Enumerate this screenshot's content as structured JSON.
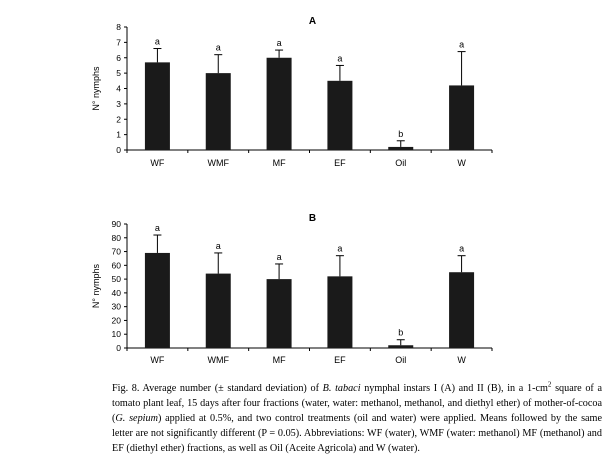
{
  "chart_data": [
    {
      "type": "bar",
      "title": "A",
      "ylabel": "N° nymphs",
      "xlabel": "",
      "categories": [
        "WF",
        "WMF",
        "MF",
        "EF",
        "Oil",
        "W"
      ],
      "values": [
        5.7,
        5.0,
        6.0,
        4.5,
        0.2,
        4.2
      ],
      "error": [
        0.9,
        1.2,
        0.5,
        1.0,
        0.4,
        2.2
      ],
      "letters": [
        "a",
        "a",
        "a",
        "a",
        "b",
        "a"
      ],
      "ylim": [
        0,
        8
      ],
      "yticks": [
        0,
        1,
        2,
        3,
        4,
        5,
        6,
        7,
        8
      ],
      "grid": false,
      "bar_color": "#1a1a1a"
    },
    {
      "type": "bar",
      "title": "B",
      "ylabel": "N° nymphs",
      "xlabel": "",
      "categories": [
        "WF",
        "WMF",
        "MF",
        "EF",
        "Oil",
        "W"
      ],
      "values": [
        69,
        54,
        50,
        52,
        2,
        55
      ],
      "error": [
        13,
        15,
        11,
        15,
        4,
        12
      ],
      "letters": [
        "a",
        "a",
        "a",
        "a",
        "b",
        "a"
      ],
      "ylim": [
        0,
        90
      ],
      "yticks": [
        0,
        10,
        20,
        30,
        40,
        50,
        60,
        70,
        80,
        90
      ],
      "grid": false,
      "bar_color": "#1a1a1a"
    }
  ],
  "caption": {
    "fig_label": "Fig. 8.",
    "p1": " Average number (± standard deviation) of ",
    "species": "B. tabaci",
    "p2": " nymphal instars I (A) and II (B), in a 1-cm",
    "sup": "2",
    "p3": " square of a tomato plant leaf, 15 days after four fractions (water, water: methanol, methanol, and diethyl ether) of mother-of-cocoa (",
    "plant": "G. sepium",
    "p4": ") applied at 0.5%, and two control treatments (oil and water) were applied. Means followed by the same letter are not significantly different (P = 0.05). Abbreviations: WF (water), WMF (water: methanol) MF (methanol) and EF (diethyl ether) fractions, as well as Oil (Aceite Agricola) and W (water)."
  }
}
